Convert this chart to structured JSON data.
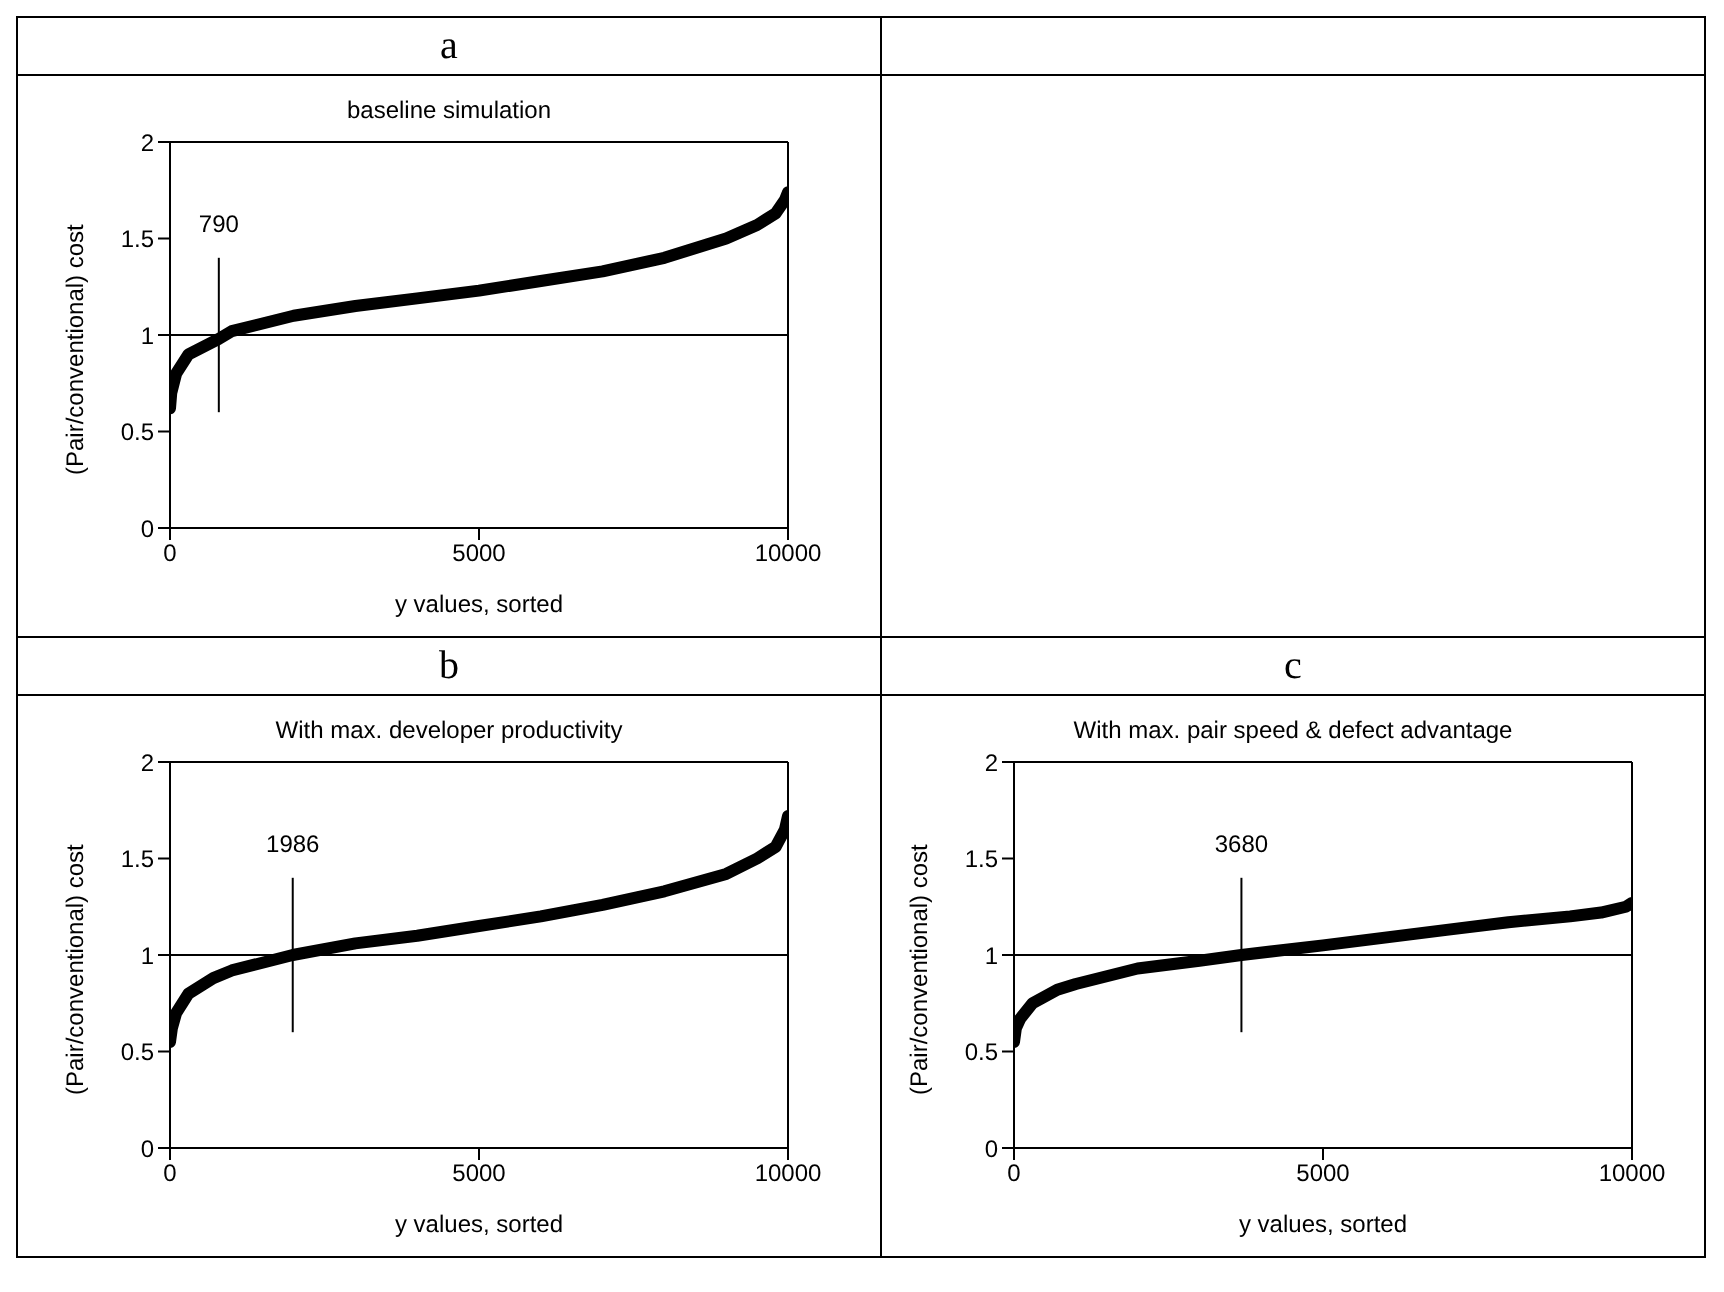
{
  "chart_data": [
    {
      "type": "line",
      "title": "a",
      "subtitle": "baseline simulation",
      "xlabel": "y values, sorted",
      "ylabel": "(Pair/conventional) cost",
      "xlim": [
        0,
        10000
      ],
      "xticks": [
        0,
        5000,
        10000
      ],
      "ylim": [
        0,
        2
      ],
      "yticks": [
        0,
        0.5,
        1,
        1.5,
        2
      ],
      "grid": false,
      "legend": false,
      "marker": "none",
      "line_style": "solid",
      "series": [
        {
          "color": "#000000",
          "x": [
            0,
            20,
            100,
            300,
            790,
            1000,
            2000,
            3000,
            4000,
            5000,
            6000,
            7000,
            8000,
            9000,
            9500,
            9800,
            9950,
            10000
          ],
          "values": [
            0.62,
            0.7,
            0.8,
            0.9,
            0.98,
            1.02,
            1.1,
            1.15,
            1.19,
            1.23,
            1.28,
            1.33,
            1.4,
            1.5,
            1.57,
            1.63,
            1.7,
            1.74
          ]
        }
      ],
      "ref_lines": [
        {
          "axis": "y",
          "value": 1
        },
        {
          "axis": "x",
          "value": 790,
          "label": "790"
        }
      ]
    },
    {
      "type": "line",
      "title": "b",
      "subtitle": "With max. developer productivity",
      "xlabel": "y values, sorted",
      "ylabel": "(Pair/conventional) cost",
      "xlim": [
        0,
        10000
      ],
      "xticks": [
        0,
        5000,
        10000
      ],
      "ylim": [
        0,
        2
      ],
      "yticks": [
        0,
        0.5,
        1,
        1.5,
        2
      ],
      "grid": false,
      "legend": false,
      "marker": "none",
      "line_style": "solid",
      "series": [
        {
          "color": "#000000",
          "x": [
            0,
            30,
            100,
            300,
            700,
            1000,
            1986,
            3000,
            4000,
            5000,
            6000,
            7000,
            8000,
            9000,
            9500,
            9800,
            9950,
            10000
          ],
          "values": [
            0.55,
            0.62,
            0.7,
            0.8,
            0.88,
            0.92,
            1.0,
            1.06,
            1.1,
            1.15,
            1.2,
            1.26,
            1.33,
            1.42,
            1.5,
            1.56,
            1.65,
            1.72
          ]
        }
      ],
      "ref_lines": [
        {
          "axis": "y",
          "value": 1
        },
        {
          "axis": "x",
          "value": 1986,
          "label": "1986"
        }
      ]
    },
    {
      "type": "line",
      "title": "c",
      "subtitle": "With max. pair speed & defect advantage",
      "xlabel": "y values, sorted",
      "ylabel": "(Pair/conventional) cost",
      "xlim": [
        0,
        10000
      ],
      "xticks": [
        0,
        5000,
        10000
      ],
      "ylim": [
        0,
        2
      ],
      "yticks": [
        0,
        0.5,
        1,
        1.5,
        2
      ],
      "grid": false,
      "legend": false,
      "marker": "none",
      "line_style": "solid",
      "series": [
        {
          "color": "#000000",
          "x": [
            0,
            30,
            100,
            300,
            700,
            1000,
            2000,
            3000,
            3680,
            5000,
            6000,
            7000,
            8000,
            9000,
            9500,
            9900,
            10000
          ],
          "values": [
            0.55,
            0.62,
            0.67,
            0.75,
            0.82,
            0.85,
            0.93,
            0.97,
            1.0,
            1.05,
            1.09,
            1.13,
            1.17,
            1.2,
            1.22,
            1.25,
            1.27
          ]
        }
      ],
      "ref_lines": [
        {
          "axis": "y",
          "value": 1
        },
        {
          "axis": "x",
          "value": 3680,
          "label": "3680"
        }
      ]
    }
  ]
}
